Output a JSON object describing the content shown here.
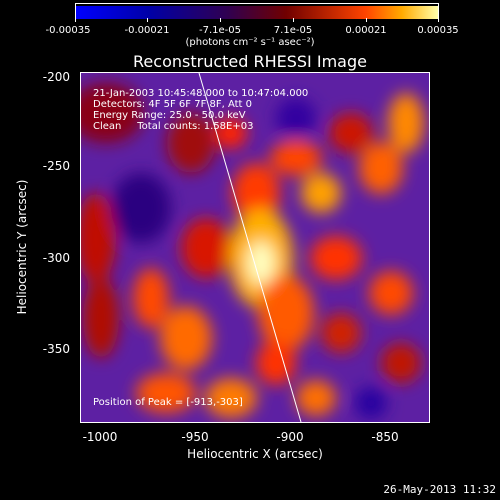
{
  "colorbar": {
    "tick_labels": [
      "-0.00035",
      "-0.00021",
      "-7.1e-05",
      "7.1e-05",
      "0.00021",
      "0.00035"
    ],
    "units": "(photons cm⁻² s⁻¹ asec⁻²)"
  },
  "plot": {
    "title": "Reconstructed RHESSI Image",
    "info_lines": [
      "21-Jan-2003 10:45:48.000 to 10:47:04.000",
      "Detectors: 4F 5F 6F 7F 8F, Att 0",
      "Energy Range: 25.0 - 50.0 keV",
      "Clean     Total counts: 1.58E+03"
    ],
    "peak_text": "Position of Peak = [-913,-303]",
    "xlabel": "Heliocentric X (arcsec)",
    "ylabel": "Heliocentric Y (arcsec)",
    "x_ticks": [
      "-1000",
      "-950",
      "-900",
      "-850"
    ],
    "y_ticks": [
      "-200",
      "-250",
      "-300",
      "-350"
    ]
  },
  "timestamp": "26-May-2013 11:32",
  "chart_data": {
    "type": "heatmap",
    "title": "Reconstructed RHESSI Image",
    "xlabel": "Heliocentric X (arcsec)",
    "ylabel": "Heliocentric Y (arcsec)",
    "xlim": [
      -1012,
      -833
    ],
    "ylim": [
      -390,
      -195
    ],
    "clim": [
      -0.00035,
      0.00035
    ],
    "peak": [
      -913,
      -303
    ]
  }
}
